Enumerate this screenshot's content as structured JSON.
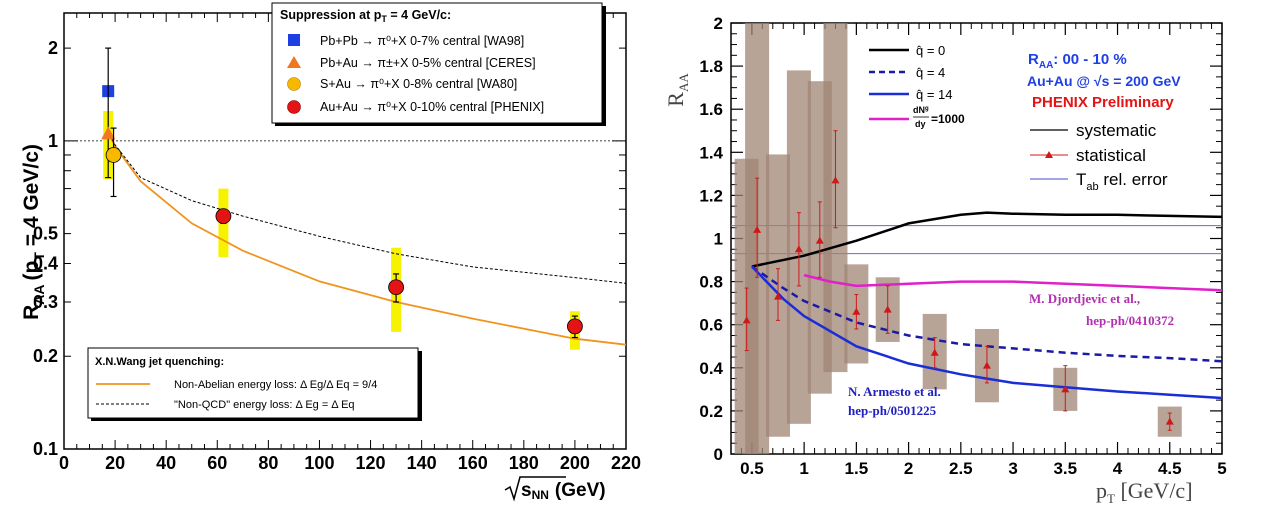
{
  "chart_data": [
    {
      "type": "scatter",
      "x_scale": "linear",
      "y_scale": "log",
      "xlim": [
        0,
        220
      ],
      "ylim": [
        0.1,
        2.6
      ],
      "xticks": [
        0,
        20,
        40,
        60,
        80,
        100,
        120,
        140,
        160,
        180,
        200,
        220
      ],
      "xtick_labels": [
        "0",
        "20",
        "40",
        "60",
        "80",
        "100",
        "120",
        "140",
        "160",
        "180",
        "200",
        "220"
      ],
      "yticks": [
        0.1,
        0.2,
        0.3,
        0.4,
        0.5,
        1,
        2
      ],
      "ytick_labels": [
        "0.1",
        "0.2",
        "0.3",
        "0.4",
        "0.5",
        "1",
        "2"
      ],
      "xlabel_root": "s",
      "xlabel_sub": "NN",
      "xlabel_unit": "(GeV)",
      "ylabel_main": "R",
      "ylabel_sub": "AA",
      "ylabel_cond_a": "(p",
      "ylabel_cond_sub": "T",
      "ylabel_cond_b": " = 4 GeV/c)",
      "reference_line": {
        "y": 1,
        "style": "dotted"
      },
      "legend_top": {
        "title_a": "Suppression at p",
        "title_sub": "T",
        "title_b": " = 4 GeV/c:",
        "entries": [
          {
            "text": "Pb+Pb → π⁰+X  0-7%  central [WA98]",
            "color": "#1f3fe6",
            "marker": "square"
          },
          {
            "text": "Pb+Au → π±+X  0-5% central [CERES]",
            "color": "#f07820",
            "marker": "triangle"
          },
          {
            "text": "S+Au → π⁰+X  0-8% central [WA80]",
            "color": "#f9b800",
            "marker": "circle"
          },
          {
            "text": "Au+Au → π⁰+X  0-10% central [PHENIX]",
            "color": "#e41414",
            "marker": "circle"
          }
        ]
      },
      "legend_bottom": {
        "title": "X.N.Wang jet quenching:",
        "entries": [
          {
            "text": "Non-Abelian energy loss: Δ Eg/Δ Eq = 9/4",
            "color": "#f0941e",
            "style": "solid"
          },
          {
            "text": "\"Non-QCD\" energy loss: Δ Eg = Δ Eq",
            "color": "#000000",
            "style": "dashed"
          }
        ]
      },
      "points": [
        {
          "name": "WA98",
          "marker": "square",
          "color": "#1f3fe6",
          "x": 17.3,
          "y": 1.45,
          "err": [
            1.45,
            1.45
          ],
          "band": [
            1.45,
            1.45
          ]
        },
        {
          "name": "CERES",
          "marker": "triangle",
          "color": "#f07820",
          "x": 17.3,
          "y": 1.05,
          "err": [
            0.76,
            2.0
          ],
          "band": [
            0.75,
            1.25
          ]
        },
        {
          "name": "WA80",
          "marker": "circle",
          "color": "#f9b800",
          "x": 19.4,
          "y": 0.9,
          "err": [
            0.66,
            1.1
          ],
          "band": [
            0.9,
            0.9
          ]
        },
        {
          "name": "PHENIX",
          "marker": "circle",
          "color": "#e41414",
          "x": 62.4,
          "y": 0.57,
          "err": [
            0.54,
            0.6
          ],
          "band": [
            0.42,
            0.7
          ]
        },
        {
          "name": "PHENIX",
          "marker": "circle",
          "color": "#e41414",
          "x": 130,
          "y": 0.335,
          "err": [
            0.3,
            0.37
          ],
          "band": [
            0.24,
            0.45
          ]
        },
        {
          "name": "PHENIX",
          "marker": "circle",
          "color": "#e41414",
          "x": 200,
          "y": 0.25,
          "err": [
            0.23,
            0.27
          ],
          "band": [
            0.21,
            0.28
          ]
        }
      ],
      "curves": [
        {
          "name": "Non-Abelian energy loss",
          "color": "#f0941e",
          "style": "solid",
          "x": [
            17,
            20,
            30,
            50,
            70,
            100,
            130,
            160,
            200,
            220
          ],
          "y": [
            1.08,
            0.96,
            0.74,
            0.54,
            0.44,
            0.35,
            0.3,
            0.265,
            0.228,
            0.218
          ]
        },
        {
          "name": "Non-QCD energy loss",
          "color": "#000000",
          "style": "dashed",
          "x": [
            17,
            20,
            30,
            50,
            70,
            100,
            130,
            160,
            200,
            220
          ],
          "y": [
            1.08,
            0.97,
            0.76,
            0.64,
            0.57,
            0.49,
            0.43,
            0.39,
            0.36,
            0.345
          ]
        }
      ]
    },
    {
      "type": "line",
      "xlim": [
        0.3,
        5
      ],
      "ylim": [
        0,
        2
      ],
      "xticks": [
        0.5,
        1,
        1.5,
        2,
        2.5,
        3,
        3.5,
        4,
        4.5,
        5
      ],
      "xtick_labels": [
        "0.5",
        "1",
        "1.5",
        "2",
        "2.5",
        "3",
        "3.5",
        "4",
        "4.5",
        "5"
      ],
      "yticks": [
        0,
        0.2,
        0.4,
        0.6,
        0.8,
        1,
        1.2,
        1.4,
        1.6,
        1.8,
        2
      ],
      "ytick_labels": [
        "0",
        "0.2",
        "0.4",
        "0.6",
        "0.8",
        "1",
        "1.2",
        "1.4",
        "1.6",
        "1.8",
        "2"
      ],
      "xlabel_a": "p",
      "xlabel_sub": "T",
      "xlabel_b": " [GeV/c]",
      "ylabel_main": "R",
      "ylabel_sub": "AA",
      "info_lines": [
        {
          "text": "R",
          "sub": "AA",
          "rest": ":  00 - 10 %",
          "color": "#1f3fe6"
        },
        {
          "text": "Au+Au @ √s = 200 GeV",
          "color": "#1f3fe6"
        },
        {
          "text": "PHENIX Preliminary",
          "color": "#e41414"
        }
      ],
      "model_legend": [
        {
          "text": "q̂ = 0",
          "color": "#000000",
          "style": "solid"
        },
        {
          "text": "q̂ = 4",
          "color": "#1a1aa8",
          "style": "dashed"
        },
        {
          "text": "q̂ = 14",
          "color": "#1a2ed6",
          "style": "solid"
        },
        {
          "text": "dNg/dy=1000",
          "num": "dN",
          "num_sup": "g",
          "den": "dy",
          "value": "=1000",
          "color": "#e020c8",
          "style": "solid"
        }
      ],
      "error_legend": [
        {
          "text": "systematic",
          "color": "#000000"
        },
        {
          "text": "statistical",
          "color": "#d01818"
        },
        {
          "text": "T",
          "sub": "ab",
          "rest": " rel. error",
          "color": "#4a4acc"
        }
      ],
      "annotations": [
        {
          "lines": [
            "M. Djordjevic et al.,",
            "hep-ph/0410372"
          ],
          "color": "#b030b0"
        },
        {
          "lines": [
            "N. Armesto et al.",
            "hep-ph/0501225"
          ],
          "color": "#2020c0"
        }
      ],
      "reference_lines": [
        1.06,
        0.93
      ],
      "points": {
        "x": [
          0.45,
          0.55,
          0.75,
          0.95,
          1.15,
          1.3,
          1.5,
          1.8,
          2.25,
          2.75,
          3.5,
          4.5
        ],
        "y": [
          0.62,
          1.04,
          0.73,
          0.95,
          0.99,
          1.27,
          0.66,
          0.67,
          0.47,
          0.41,
          0.3,
          0.15
        ],
        "stat_lo": [
          0.48,
          0.82,
          0.62,
          0.78,
          0.82,
          1.05,
          0.58,
          0.56,
          0.4,
          0.33,
          0.2,
          0.11
        ],
        "stat_hi": [
          0.77,
          1.28,
          0.86,
          1.12,
          1.17,
          1.5,
          0.74,
          0.78,
          0.54,
          0.5,
          0.41,
          0.19
        ],
        "sys_lo": [
          0.0,
          0.0,
          0.08,
          0.14,
          0.28,
          0.38,
          0.42,
          0.52,
          0.3,
          0.24,
          0.2,
          0.08
        ],
        "sys_hi": [
          1.37,
          2.0,
          1.39,
          1.78,
          1.73,
          2.0,
          0.88,
          0.82,
          0.65,
          0.58,
          0.4,
          0.22
        ]
      },
      "series": [
        {
          "name": "q̂ = 0",
          "color": "#000000",
          "style": "solid",
          "x": [
            0.5,
            1,
            1.5,
            2,
            2.5,
            2.75,
            3,
            3.5,
            4,
            4.5,
            5
          ],
          "y": [
            0.87,
            0.92,
            0.99,
            1.07,
            1.11,
            1.12,
            1.115,
            1.11,
            1.11,
            1.105,
            1.1
          ]
        },
        {
          "name": "q̂ = 4",
          "color": "#1a1aa8",
          "style": "dashed",
          "x": [
            0.5,
            0.8,
            1,
            1.5,
            2,
            2.5,
            3,
            3.5,
            4,
            4.5,
            5
          ],
          "y": [
            0.87,
            0.77,
            0.71,
            0.61,
            0.55,
            0.51,
            0.49,
            0.47,
            0.455,
            0.445,
            0.43
          ]
        },
        {
          "name": "q̂ = 14",
          "color": "#1a2ed6",
          "style": "solid",
          "x": [
            0.5,
            0.8,
            1,
            1.5,
            2,
            2.5,
            2.75,
            3,
            3.5,
            4,
            4.5,
            5
          ],
          "y": [
            0.87,
            0.72,
            0.64,
            0.5,
            0.42,
            0.37,
            0.35,
            0.33,
            0.31,
            0.29,
            0.275,
            0.26
          ]
        },
        {
          "name": "dNg/dy=1000",
          "color": "#e020c8",
          "style": "solid",
          "x": [
            1,
            1.25,
            1.5,
            2,
            2.5,
            3,
            3.5,
            4,
            4.5,
            5
          ],
          "y": [
            0.83,
            0.8,
            0.78,
            0.79,
            0.8,
            0.8,
            0.79,
            0.78,
            0.77,
            0.76
          ]
        }
      ]
    }
  ]
}
